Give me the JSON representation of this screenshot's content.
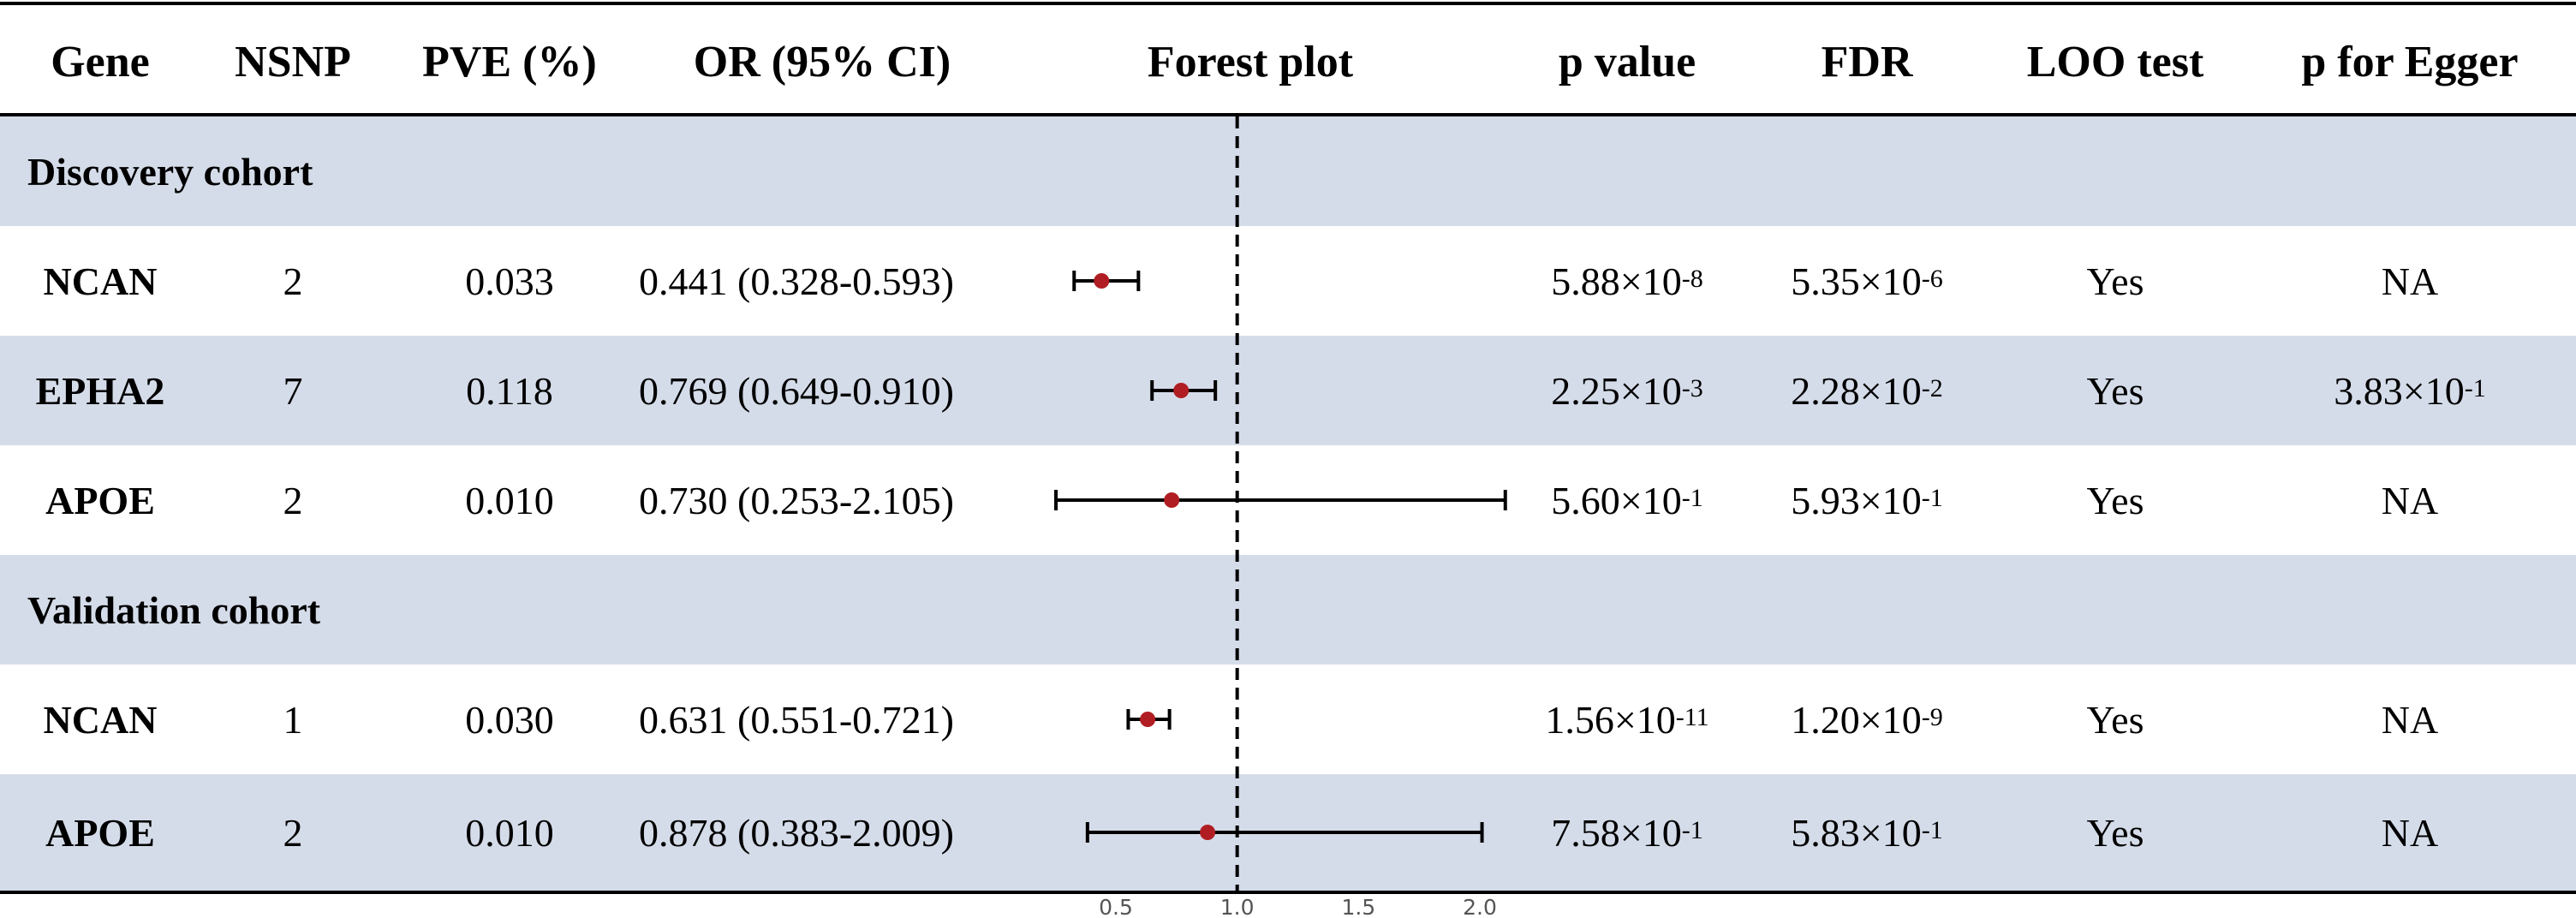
{
  "headers": {
    "gene": "Gene",
    "nsnp": "NSNP",
    "pve": "PVE (%)",
    "or": "OR (95% CI)",
    "forest": "Forest plot",
    "pvalue": "p value",
    "fdr": "FDR",
    "loo": "LOO test",
    "egger": "p for Egger"
  },
  "cohorts": {
    "discovery": "Discovery cohort",
    "validation": "Validation cohort"
  },
  "rows": [
    {
      "gene": "NCAN",
      "nsnp": "2",
      "pve": "0.033",
      "or_text": "0.441 (0.328-0.593)",
      "p_mant": "5.88×10",
      "p_exp": "-8",
      "fdr_mant": "5.35×10",
      "fdr_exp": "-6",
      "loo": "Yes",
      "egger_mant": "NA",
      "egger_exp": ""
    },
    {
      "gene": "EPHA2",
      "nsnp": "7",
      "pve": "0.118",
      "or_text": "0.769 (0.649-0.910)",
      "p_mant": "2.25×10",
      "p_exp": "-3",
      "fdr_mant": "2.28×10",
      "fdr_exp": "-2",
      "loo": "Yes",
      "egger_mant": "3.83×10",
      "egger_exp": "-1"
    },
    {
      "gene": "APOE",
      "nsnp": "2",
      "pve": "0.010",
      "or_text": "0.730 (0.253-2.105)",
      "p_mant": "5.60×10",
      "p_exp": "-1",
      "fdr_mant": "5.93×10",
      "fdr_exp": "-1",
      "loo": "Yes",
      "egger_mant": "NA",
      "egger_exp": ""
    },
    {
      "gene": "NCAN",
      "nsnp": "1",
      "pve": "0.030",
      "or_text": "0.631 (0.551-0.721)",
      "p_mant": "1.56×10",
      "p_exp": "-11",
      "fdr_mant": "1.20×10",
      "fdr_exp": "-9",
      "loo": "Yes",
      "egger_mant": "NA",
      "egger_exp": ""
    },
    {
      "gene": "APOE",
      "nsnp": "2",
      "pve": "0.010",
      "or_text": "0.878 (0.383-2.009)",
      "p_mant": "7.58×10",
      "p_exp": "-1",
      "fdr_mant": "5.83×10",
      "fdr_exp": "-1",
      "loo": "Yes",
      "egger_mant": "NA",
      "egger_exp": ""
    }
  ],
  "chart_data": {
    "type": "forest",
    "xlim": [
      0.35,
      2.2
    ],
    "reference_line": 1.0,
    "ticks": [
      0.5,
      1.0,
      1.5,
      2.0
    ],
    "tick_labels": [
      "0.5",
      "1.0",
      "1.5",
      "2.0"
    ],
    "points": [
      {
        "or": 0.441,
        "lower": 0.328,
        "upper": 0.593
      },
      {
        "or": 0.769,
        "lower": 0.649,
        "upper": 0.91
      },
      {
        "or": 0.73,
        "lower": 0.253,
        "upper": 2.105
      },
      {
        "or": 0.631,
        "lower": 0.551,
        "upper": 0.721
      },
      {
        "or": 0.878,
        "lower": 0.383,
        "upper": 2.009
      }
    ],
    "point_color": "#b01e23",
    "line_color": "#000000"
  },
  "colors": {
    "band": "#d5dce9"
  }
}
